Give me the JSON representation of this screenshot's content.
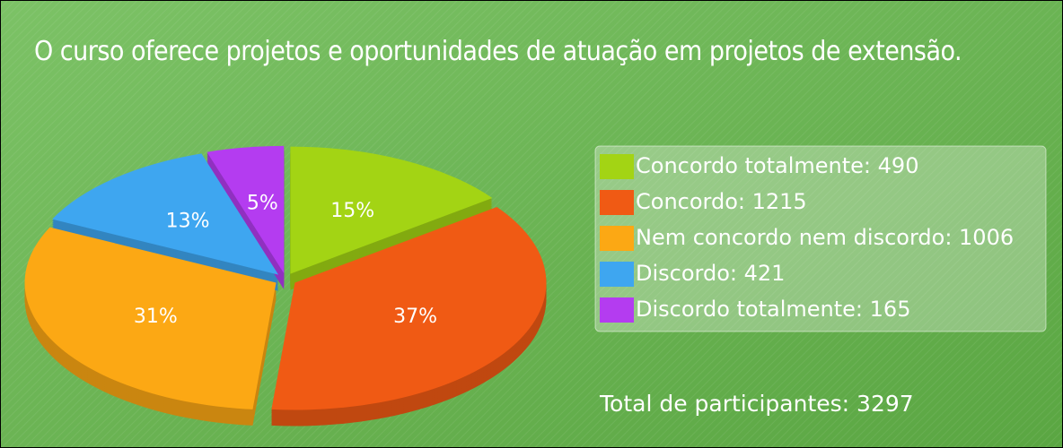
{
  "chart_data": {
    "type": "pie",
    "title": "O curso oferece projetos e oportunidades de atuação em projetos de extensão.",
    "categories": [
      "Concordo totalmente: 490",
      "Concordo: 1215",
      "Nem concordo nem discordo: 1006",
      "Discordo: 421",
      "Discordo totalmente: 165"
    ],
    "values": [
      15,
      37,
      31,
      13,
      5
    ],
    "value_labels": [
      "15%",
      "37%",
      "31%",
      "13%",
      "5%"
    ],
    "colors": [
      "#a3d414",
      "#f05a14",
      "#fca814",
      "#3ea6f0",
      "#b43cf0"
    ],
    "annotation": "Total de participantes: 3297",
    "legend": "right"
  }
}
